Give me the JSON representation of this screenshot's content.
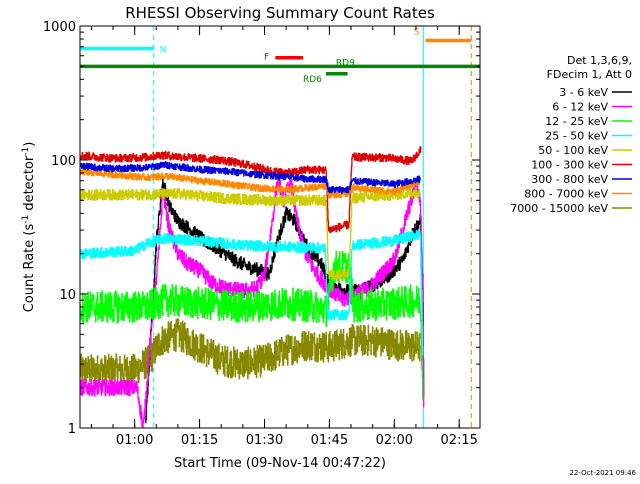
{
  "chart_data": {
    "type": "line",
    "title": "RHESSI Observing Summary Count Rates",
    "xlabel": "Start Time (09-Nov-14 00:47:22)",
    "ylabel_main": "Count Rate (s",
    "ylabel_sup1": "-1",
    "ylabel_mid": " detector",
    "ylabel_sup2": "-1",
    "ylabel_end": ")",
    "footer": "22-Oct-2021 09:46",
    "yscale": "log",
    "ylim": [
      1,
      1000
    ],
    "xlim_min": [
      47.37,
      139.8
    ],
    "yticks": [
      {
        "v": 1,
        "label": "1"
      },
      {
        "v": 10,
        "label": "10"
      },
      {
        "v": 100,
        "label": "100"
      },
      {
        "v": 1000,
        "label": "1000"
      }
    ],
    "xticks": [
      {
        "v": 60,
        "label": "01:00"
      },
      {
        "v": 75,
        "label": "01:15"
      },
      {
        "v": 90,
        "label": "01:30"
      },
      {
        "v": 105,
        "label": "01:45"
      },
      {
        "v": 120,
        "label": "02:00"
      },
      {
        "v": 135,
        "label": "02:15"
      }
    ],
    "legend_header": [
      "Det 1,3,6,9,",
      "FDecim 1, Att 0"
    ],
    "legend": [
      {
        "label": "3 - 6 keV",
        "color": "#000000"
      },
      {
        "label": "6 - 12 keV",
        "color": "#ff00ff"
      },
      {
        "label": "12 - 25 keV",
        "color": "#00ff00"
      },
      {
        "label": "25 - 50 keV",
        "color": "#00ffff"
      },
      {
        "label": "50 - 100 keV",
        "color": "#cccc00"
      },
      {
        "label": "100 - 300 keV",
        "color": "#dd0000"
      },
      {
        "label": "300 - 800 keV",
        "color": "#0000dd"
      },
      {
        "label": "800 - 7000 keV",
        "color": "#ff8800"
      },
      {
        "label": "7000 - 15000 keV",
        "color": "#888800"
      }
    ],
    "flags": [
      {
        "label": "N",
        "color": "#00ffff",
        "x0": 47.4,
        "x1": 64.4,
        "y": 680
      },
      {
        "label": "S",
        "color": "#ff8800",
        "x0": 127.2,
        "x1": 137.8,
        "y": 780
      },
      {
        "label": "F",
        "color": "#ff0000",
        "x0": 92.5,
        "x1": 98.9,
        "y": 580
      },
      {
        "label": "RD9",
        "color": "#008800",
        "x0": 47.4,
        "x1": 139.8,
        "y": 500
      },
      {
        "label": "RD6",
        "color": "#008800",
        "x0": 104.2,
        "x1": 109.2,
        "y": 440
      }
    ],
    "night_markers": [
      {
        "x": 64.4,
        "color": "#00ffff"
      },
      {
        "x": 126.7,
        "color": "#00ffff"
      },
      {
        "x": 137.8,
        "color": "#ff8800"
      }
    ],
    "series": [
      {
        "name": "3 - 6 keV",
        "color": "#000000",
        "noise": 0.05,
        "points": [
          [
            62.5,
            1.0
          ],
          [
            63.5,
            4.0
          ],
          [
            65.0,
            25.0
          ],
          [
            66.5,
            70.0
          ],
          [
            68.0,
            45.0
          ],
          [
            70.0,
            35.0
          ],
          [
            73.0,
            30.0
          ],
          [
            76.0,
            25.0
          ],
          [
            79.0,
            22.0
          ],
          [
            83.0,
            18.0
          ],
          [
            86.0,
            16.0
          ],
          [
            89.0,
            15.0
          ],
          [
            91.0,
            14.0
          ],
          [
            93.0,
            25.0
          ],
          [
            95.0,
            40.0
          ],
          [
            97.0,
            35.0
          ],
          [
            99.0,
            25.0
          ],
          [
            101.0,
            20.0
          ],
          [
            103.0,
            17.0
          ],
          [
            105.0,
            12.0
          ],
          [
            107.0,
            11.0
          ],
          [
            110.0,
            10.5
          ],
          [
            113.0,
            11.0
          ],
          [
            116.0,
            12.0
          ],
          [
            119.0,
            14.0
          ],
          [
            122.0,
            18.0
          ],
          [
            124.5,
            30.0
          ],
          [
            126.0,
            35.0
          ],
          [
            126.6,
            10.0
          ],
          [
            126.8,
            1.0
          ]
        ]
      },
      {
        "name": "6 - 12 keV",
        "color": "#ff00ff",
        "noise": 0.06,
        "points": [
          [
            47.4,
            2.0
          ],
          [
            60.5,
            2.0
          ],
          [
            62.0,
            1.0
          ],
          [
            63.5,
            4.0
          ],
          [
            65.5,
            20.0
          ],
          [
            66.5,
            60.0
          ],
          [
            68.0,
            30.0
          ],
          [
            70.0,
            20.0
          ],
          [
            72.0,
            17.0
          ],
          [
            75.0,
            15.0
          ],
          [
            78.0,
            12.0
          ],
          [
            81.0,
            11.0
          ],
          [
            85.0,
            10.5
          ],
          [
            88.0,
            11.0
          ],
          [
            90.0,
            14.0
          ],
          [
            91.5,
            30.0
          ],
          [
            93.0,
            70.0
          ],
          [
            94.5,
            50.0
          ],
          [
            96.0,
            70.0
          ],
          [
            97.5,
            35.0
          ],
          [
            99.0,
            22.0
          ],
          [
            101.0,
            16.0
          ],
          [
            103.0,
            13.0
          ],
          [
            105.0,
            11.0
          ],
          [
            108.0,
            9.0
          ],
          [
            111.0,
            10.0
          ],
          [
            114.0,
            11.0
          ],
          [
            117.0,
            14.0
          ],
          [
            120.0,
            18.0
          ],
          [
            123.0,
            40.0
          ],
          [
            125.0,
            65.0
          ],
          [
            126.0,
            50.0
          ],
          [
            126.6,
            10.0
          ],
          [
            126.8,
            1.0
          ]
        ]
      },
      {
        "name": "12 - 25 keV",
        "color": "#00ff00",
        "noise": 0.12,
        "points": [
          [
            47.4,
            8.0
          ],
          [
            63.0,
            8.0
          ],
          [
            67.0,
            9.0
          ],
          [
            75.0,
            8.5
          ],
          [
            85.0,
            8.0
          ],
          [
            95.0,
            8.5
          ],
          [
            102.0,
            8.0
          ],
          [
            104.5,
            7.5
          ],
          [
            106.0,
            16.0
          ],
          [
            109.5,
            16.0
          ],
          [
            110.5,
            8.0
          ],
          [
            120.0,
            8.5
          ],
          [
            126.0,
            9.0
          ],
          [
            126.6,
            2.0
          ]
        ]
      },
      {
        "name": "25 - 50 keV",
        "color": "#00ffff",
        "noise": 0.04,
        "points": [
          [
            47.4,
            20.0
          ],
          [
            60.0,
            21.0
          ],
          [
            63.0,
            24.0
          ],
          [
            67.0,
            26.0
          ],
          [
            75.0,
            25.0
          ],
          [
            85.0,
            23.0
          ],
          [
            95.0,
            22.5
          ],
          [
            104.0,
            22.0
          ],
          [
            104.6,
            7.0
          ],
          [
            109.5,
            7.0
          ],
          [
            110.2,
            23.0
          ],
          [
            120.0,
            25.0
          ],
          [
            126.0,
            28.0
          ],
          [
            126.6,
            3.0
          ]
        ]
      },
      {
        "name": "50 - 100 keV",
        "color": "#cccc00",
        "noise": 0.04,
        "points": [
          [
            47.4,
            55.0
          ],
          [
            60.0,
            55.0
          ],
          [
            70.0,
            56.0
          ],
          [
            80.0,
            52.0
          ],
          [
            90.0,
            50.0
          ],
          [
            100.0,
            50.0
          ],
          [
            104.2,
            50.0
          ],
          [
            104.8,
            14.0
          ],
          [
            109.5,
            14.0
          ],
          [
            110.2,
            52.0
          ],
          [
            120.0,
            55.0
          ],
          [
            126.0,
            58.0
          ]
        ]
      },
      {
        "name": "100 - 300 keV",
        "color": "#dd0000",
        "noise": 0.03,
        "points": [
          [
            47.4,
            108.0
          ],
          [
            55.0,
            103.0
          ],
          [
            63.0,
            105.0
          ],
          [
            66.0,
            109.0
          ],
          [
            73.0,
            104.0
          ],
          [
            80.0,
            100.0
          ],
          [
            86.0,
            92.0
          ],
          [
            92.0,
            82.0
          ],
          [
            96.0,
            80.0
          ],
          [
            100.0,
            85.0
          ],
          [
            104.2,
            84.0
          ],
          [
            104.8,
            30.0
          ],
          [
            109.5,
            33.0
          ],
          [
            110.2,
            105.0
          ],
          [
            118.0,
            104.0
          ],
          [
            124.0,
            98.0
          ],
          [
            126.2,
            120.0
          ]
        ]
      },
      {
        "name": "300 - 800 keV",
        "color": "#0000dd",
        "noise": 0.025,
        "points": [
          [
            47.4,
            90.0
          ],
          [
            55.0,
            86.0
          ],
          [
            63.0,
            88.0
          ],
          [
            67.0,
            92.0
          ],
          [
            75.0,
            85.0
          ],
          [
            82.0,
            82.0
          ],
          [
            88.0,
            78.0
          ],
          [
            95.0,
            75.0
          ],
          [
            100.0,
            72.0
          ],
          [
            104.2,
            72.0
          ],
          [
            104.8,
            60.0
          ],
          [
            109.5,
            60.0
          ],
          [
            110.2,
            70.0
          ],
          [
            120.0,
            66.0
          ],
          [
            126.0,
            72.0
          ]
        ]
      },
      {
        "name": "800 - 7000 keV",
        "color": "#ff8800",
        "noise": 0.025,
        "points": [
          [
            47.4,
            82.0
          ],
          [
            55.0,
            78.0
          ],
          [
            63.0,
            74.0
          ],
          [
            67.0,
            76.0
          ],
          [
            75.0,
            70.0
          ],
          [
            82.0,
            66.0
          ],
          [
            88.0,
            62.0
          ],
          [
            95.0,
            60.0
          ],
          [
            100.0,
            62.0
          ],
          [
            104.2,
            64.0
          ],
          [
            104.8,
            55.0
          ],
          [
            109.5,
            56.0
          ],
          [
            110.2,
            62.0
          ],
          [
            120.0,
            58.0
          ],
          [
            126.0,
            70.0
          ]
        ]
      },
      {
        "name": "7000 - 15000 keV",
        "color": "#888800",
        "noise": 0.12,
        "points": [
          [
            47.4,
            2.7
          ],
          [
            60.0,
            2.7
          ],
          [
            63.5,
            3.2
          ],
          [
            66.0,
            4.5
          ],
          [
            70.0,
            5.0
          ],
          [
            75.0,
            4.0
          ],
          [
            80.0,
            3.2
          ],
          [
            85.0,
            3.0
          ],
          [
            90.0,
            3.2
          ],
          [
            95.0,
            3.8
          ],
          [
            100.0,
            4.2
          ],
          [
            105.0,
            4.0
          ],
          [
            110.0,
            4.5
          ],
          [
            115.0,
            4.5
          ],
          [
            120.0,
            4.2
          ],
          [
            126.0,
            4.0
          ]
        ]
      }
    ]
  }
}
